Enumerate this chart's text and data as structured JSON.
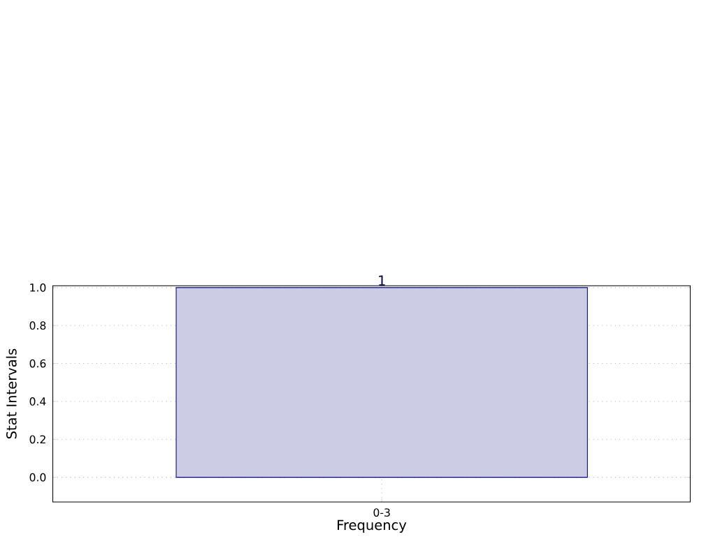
{
  "chart_data": {
    "type": "bar",
    "xlabel": "Frequency",
    "ylabel": "Stat Intervals",
    "categories": [
      "0-3"
    ],
    "values": [
      1
    ],
    "value_labels": [
      "1"
    ],
    "color": "#cccce5",
    "ylim": [
      -0.13,
      1.01
    ],
    "yticks": [
      {
        "value": 0,
        "label": "0.0"
      },
      {
        "value": 0.2,
        "label": "0.2"
      },
      {
        "value": 0.4,
        "label": "0.4"
      },
      {
        "value": 0.6,
        "label": "0.6"
      },
      {
        "value": 0.8,
        "label": "0.8"
      },
      {
        "value": 1.0,
        "label": "1.0"
      }
    ],
    "grid": true
  }
}
